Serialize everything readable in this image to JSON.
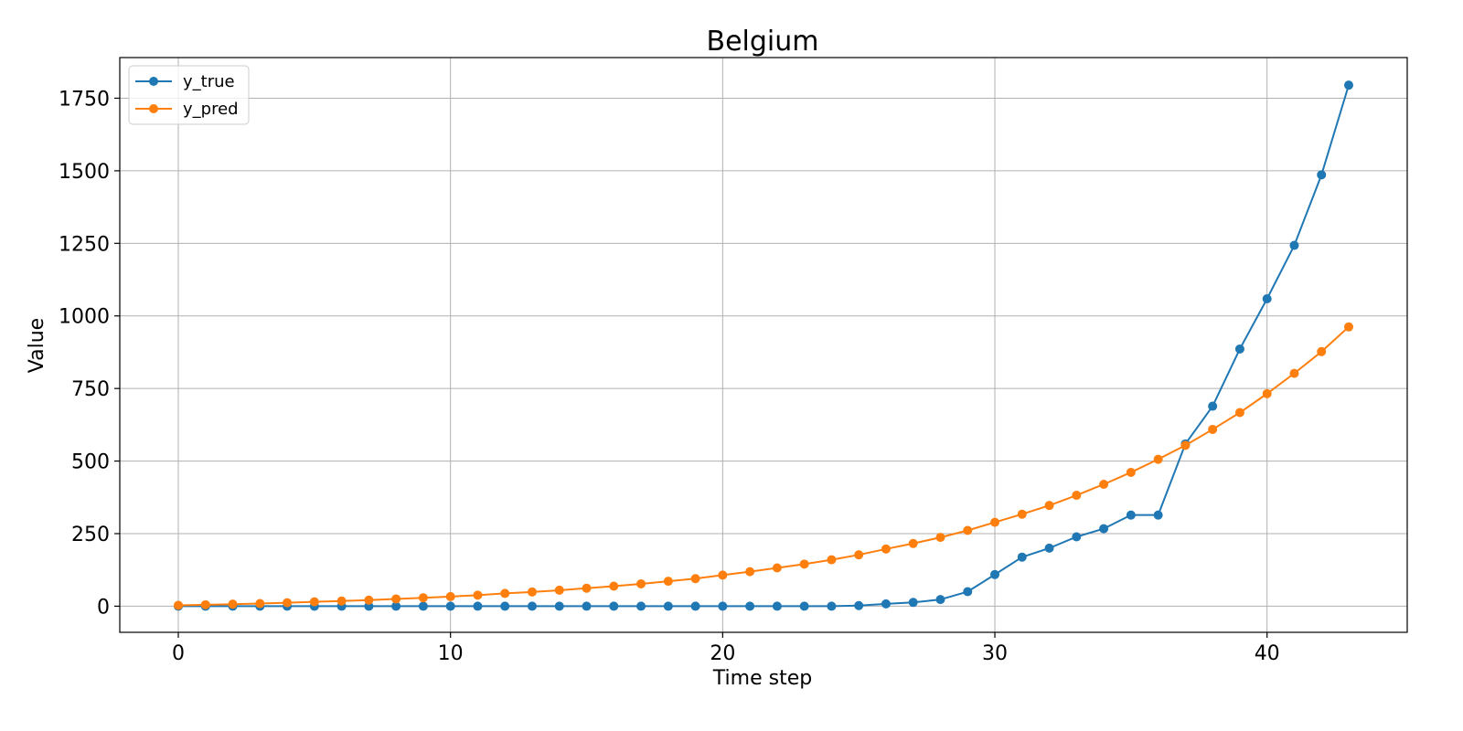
{
  "chart_data": {
    "type": "line",
    "title": "Belgium",
    "xlabel": "Time step",
    "ylabel": "Value",
    "xlim": [
      -2.15,
      45.15
    ],
    "ylim": [
      -90,
      1890
    ],
    "xticks": [
      0,
      10,
      20,
      30,
      40
    ],
    "yticks": [
      0,
      250,
      500,
      750,
      1000,
      1250,
      1500,
      1750
    ],
    "grid": true,
    "legend_position": "top-left",
    "x": [
      0,
      1,
      2,
      3,
      4,
      5,
      6,
      7,
      8,
      9,
      10,
      11,
      12,
      13,
      14,
      15,
      16,
      17,
      18,
      19,
      20,
      21,
      22,
      23,
      24,
      25,
      26,
      27,
      28,
      29,
      30,
      31,
      32,
      33,
      34,
      35,
      36,
      37,
      38,
      39,
      40,
      41,
      42,
      43
    ],
    "series": [
      {
        "name": "y_true",
        "color": "#1f77b4",
        "marker": "circle",
        "values": [
          0,
          0,
          0,
          0,
          0,
          0,
          0,
          0,
          0,
          0,
          0,
          0,
          0,
          0,
          0,
          0,
          0,
          0,
          0,
          0,
          0,
          0,
          0,
          0,
          0,
          2,
          8,
          13,
          23,
          50,
          109,
          169,
          200,
          239,
          267,
          314,
          314,
          559,
          689,
          886,
          1059,
          1243,
          1486,
          1795
        ]
      },
      {
        "name": "y_pred",
        "color": "#ff7f0e",
        "marker": "circle",
        "values": [
          3,
          5,
          7,
          9,
          12,
          15,
          18,
          21,
          25,
          29,
          33,
          38,
          44,
          49,
          55,
          62,
          69,
          77,
          86,
          95,
          107,
          119,
          132,
          145,
          160,
          177,
          197,
          216,
          237,
          261,
          289,
          317,
          347,
          382,
          420,
          461,
          506,
          554,
          609,
          667,
          732,
          802,
          877,
          962
        ]
      }
    ]
  }
}
